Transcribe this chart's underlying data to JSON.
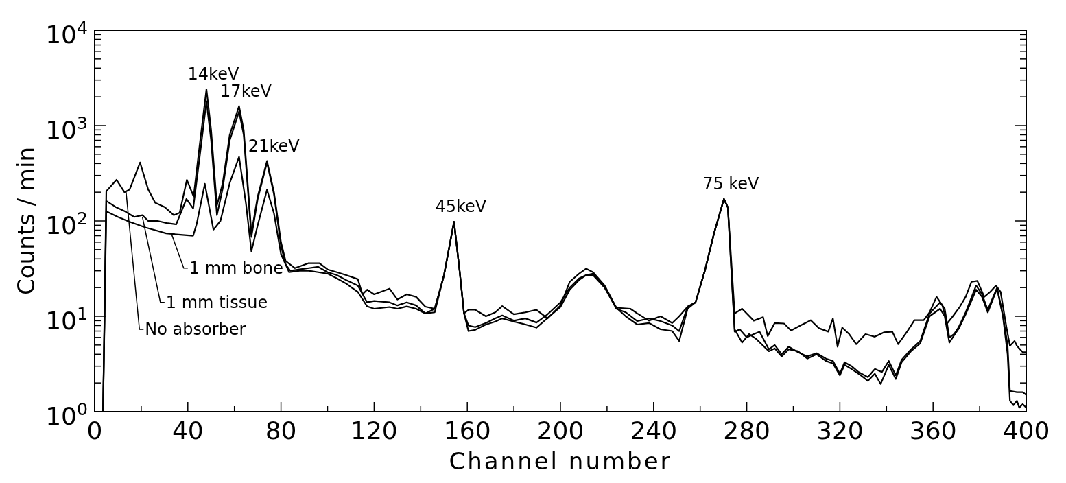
{
  "chart_data": {
    "type": "line",
    "xlabel": "Channel number",
    "ylabel": "Counts / min",
    "log": "y",
    "grid": false,
    "legend": false,
    "marker": "none",
    "line_style": "solid",
    "xlim": [
      0,
      400
    ],
    "ylim": [
      1,
      10000
    ],
    "xticks": [
      0,
      {
        "value": 20,
        "label": null
      },
      40,
      {
        "value": 60,
        "label": null
      },
      80,
      {
        "value": 100,
        "label": null
      },
      120,
      {
        "value": 140,
        "label": null
      },
      160,
      {
        "value": 180,
        "label": null
      },
      200,
      {
        "value": 220,
        "label": null
      },
      240,
      {
        "value": 260,
        "label": null
      },
      280,
      {
        "value": 300,
        "label": null
      },
      320,
      {
        "value": 340,
        "label": null
      },
      360,
      {
        "value": 380,
        "label": null
      },
      400
    ],
    "yticks": [
      {
        "value": 1,
        "label": "10$^{0}$"
      },
      {
        "value": 2,
        "label": null
      },
      {
        "value": 3,
        "label": null
      },
      {
        "value": 4,
        "label": null
      },
      {
        "value": 5,
        "label": null
      },
      {
        "value": 6,
        "label": null
      },
      {
        "value": 7,
        "label": null
      },
      {
        "value": 8,
        "label": null
      },
      {
        "value": 9,
        "label": null
      },
      {
        "value": 10,
        "label": "10$^{1}$"
      },
      {
        "value": 20,
        "label": null
      },
      {
        "value": 30,
        "label": null
      },
      {
        "value": 40,
        "label": null
      },
      {
        "value": 50,
        "label": null
      },
      {
        "value": 60,
        "label": null
      },
      {
        "value": 70,
        "label": null
      },
      {
        "value": 80,
        "label": null
      },
      {
        "value": 90,
        "label": null
      },
      {
        "value": 100,
        "label": "10$^{2}$"
      },
      {
        "value": 200,
        "label": null
      },
      {
        "value": 300,
        "label": null
      },
      {
        "value": 400,
        "label": null
      },
      {
        "value": 500,
        "label": null
      },
      {
        "value": 600,
        "label": null
      },
      {
        "value": 700,
        "label": null
      },
      {
        "value": 800,
        "label": null
      },
      {
        "value": 900,
        "label": null
      },
      {
        "value": 1000,
        "label": "10$^{3}$"
      },
      {
        "value": 2000,
        "label": null
      },
      {
        "value": 3000,
        "label": null
      },
      {
        "value": 4000,
        "label": null
      },
      {
        "value": 5000,
        "label": null
      },
      {
        "value": 6000,
        "label": null
      },
      {
        "value": 7000,
        "label": null
      },
      {
        "value": 8000,
        "label": null
      },
      {
        "value": 9000,
        "label": null
      },
      {
        "value": 10000,
        "label": "10$^{4}$"
      }
    ],
    "annotations": [
      {
        "text": "14keV",
        "x": 48,
        "y": 2400
      },
      {
        "text": "17keV",
        "x": 62,
        "y": 1600
      },
      {
        "text": "21keV",
        "x": 74,
        "y": 425
      },
      {
        "text": "45keV",
        "x": 154.3,
        "y": 98
      },
      {
        "text": "75 keV",
        "x": 270.2,
        "y": 170
      }
    ],
    "series": [
      {
        "name": "No absorber",
        "color": "#000000",
        "x": [
          3.6,
          5,
          9.4,
          12.8,
          15,
          19.5,
          23,
          26,
          30,
          34,
          36.5,
          39.6,
          42.5,
          45,
          48,
          50,
          52.5,
          55,
          58,
          62,
          64,
          67.3,
          70,
          74,
          77,
          80,
          82,
          86,
          91.7,
          96.5,
          100,
          104,
          108,
          113,
          115,
          117,
          120,
          126.6,
          130,
          134,
          138,
          142,
          146,
          150,
          154.3,
          156.7,
          158.6,
          160.5,
          163.4,
          168,
          172,
          175,
          180,
          185,
          189.7,
          194.5,
          200,
          204,
          208,
          211,
          214,
          219,
          224,
          230,
          233,
          238,
          243,
          248,
          251,
          254.6,
          258,
          262,
          266,
          270.2,
          271.9,
          274.8,
          278,
          283,
          287,
          289,
          292,
          296,
          299,
          303,
          307.5,
          311,
          315,
          317,
          319,
          321,
          324,
          327,
          331,
          335,
          339,
          342.5,
          345,
          349,
          352,
          356,
          358.5,
          361.5,
          364,
          366,
          368.5,
          371.5,
          374,
          376.5,
          379,
          382,
          384.5,
          387,
          389,
          391.5,
          393,
          395,
          396,
          398.5,
          400
        ],
        "values": [
          1,
          205,
          270,
          200,
          213,
          410,
          213,
          155,
          140,
          115,
          122,
          270,
          180,
          600,
          2400,
          900,
          145,
          250,
          800,
          1600,
          900,
          74,
          180,
          425,
          200,
          60,
          38,
          32,
          36,
          36,
          31,
          29,
          27,
          24.5,
          17,
          19,
          17,
          19.5,
          15,
          17,
          16,
          12.6,
          12,
          27,
          98,
          30,
          10.7,
          11.7,
          11.7,
          10,
          11,
          12.8,
          10.5,
          11,
          11.7,
          9.5,
          13,
          23,
          28,
          31.6,
          29,
          21,
          12.3,
          12,
          10.7,
          9,
          10,
          8.5,
          10,
          12.6,
          14,
          30,
          75,
          170,
          138,
          10.7,
          12,
          9,
          9.8,
          6.2,
          8.5,
          8.4,
          7.1,
          8,
          9.1,
          7.5,
          6.9,
          9.5,
          4.8,
          7.6,
          6.5,
          5.1,
          6.5,
          6.1,
          6.8,
          6.9,
          5.1,
          7,
          9.1,
          9.1,
          11,
          16,
          13,
          8.4,
          10,
          12.6,
          16,
          23,
          23.5,
          16,
          18,
          21,
          18,
          7.7,
          4.9,
          5.5,
          4.9,
          4.2,
          4.2
        ]
      },
      {
        "name": "1 mm tissue",
        "color": "#000000",
        "x": [
          3.6,
          5,
          9,
          13,
          17,
          20.5,
          23,
          27,
          31,
          35,
          39.4,
          42.3,
          45,
          48,
          50,
          52.5,
          55,
          58,
          62,
          64,
          67.3,
          70,
          74,
          77,
          80,
          82,
          84,
          88,
          92,
          96,
          100,
          104,
          108,
          113,
          117,
          120,
          126.6,
          130,
          134,
          138,
          142,
          146,
          150,
          154.3,
          156.7,
          158.6,
          160.5,
          163.4,
          168,
          172,
          175,
          180,
          185,
          189.7,
          194.5,
          200,
          204,
          208,
          211,
          214,
          219,
          224,
          228,
          233,
          238,
          243,
          248,
          251,
          254.6,
          258,
          262,
          266,
          270.2,
          271.9,
          274.8,
          277,
          280,
          283,
          285.5,
          289.5,
          292,
          295,
          298,
          302,
          306,
          310,
          314,
          317,
          320,
          322,
          325,
          328,
          332,
          335,
          338,
          341,
          344,
          346.5,
          350.5,
          354.5,
          358.5,
          363,
          365,
          367,
          369,
          371,
          374,
          378.5,
          381,
          383.5,
          387.5,
          390,
          392,
          393,
          396,
          398.5,
          400
        ],
        "values": [
          1,
          162,
          140,
          126,
          110,
          115,
          100,
          100,
          95,
          92,
          170,
          135,
          450,
          1800,
          700,
          115,
          220,
          700,
          1400,
          800,
          68,
          170,
          410,
          190,
          55,
          35,
          30,
          31,
          32,
          33,
          29,
          27,
          24,
          21,
          14,
          14.5,
          14,
          13,
          14,
          13,
          10.7,
          12,
          27,
          98,
          30,
          10.7,
          8,
          7.7,
          8.5,
          9.5,
          10.2,
          9,
          9.5,
          8.6,
          10.5,
          14,
          20,
          25,
          27,
          28,
          20,
          12,
          11,
          8.9,
          9.5,
          8.9,
          8,
          7,
          12.6,
          14,
          30,
          75,
          170,
          138,
          6.9,
          7.3,
          6,
          6.5,
          6.9,
          4.5,
          5,
          4,
          4.8,
          4.2,
          3.8,
          4.1,
          3.6,
          3.4,
          2.5,
          3.3,
          3,
          2.6,
          2.3,
          2.8,
          2.6,
          3.4,
          2.4,
          3.5,
          4.5,
          5.5,
          10.7,
          14,
          12,
          6,
          6.5,
          7.7,
          11,
          21,
          17,
          11.7,
          20,
          10.2,
          5,
          1.65,
          1.6,
          1.6,
          1.5
        ]
      },
      {
        "name": "1 mm bone",
        "color": "#000000",
        "x": [
          3.6,
          5,
          10,
          15,
          22,
          26,
          30.7,
          36,
          42.3,
          43.8,
          47.3,
          51,
          54,
          58,
          62,
          65,
          67.3,
          70,
          74,
          77,
          80,
          83.5,
          88,
          92,
          96,
          100,
          104,
          108,
          113,
          117,
          120,
          126.6,
          130,
          134,
          138,
          142,
          146,
          150,
          154.3,
          156.7,
          158.6,
          160.5,
          163.4,
          168,
          172,
          175,
          180,
          185,
          189.7,
          194.5,
          200,
          204,
          208,
          211,
          214,
          219,
          224,
          228,
          233,
          238,
          243,
          248,
          251,
          254.6,
          258,
          262,
          266,
          270.2,
          271.9,
          274.8,
          278,
          281,
          284,
          289.5,
          292,
          295,
          298,
          302,
          306,
          310,
          314,
          317,
          320,
          322,
          325,
          329,
          332,
          335,
          337.5,
          341,
          344,
          346.5,
          350.5,
          354.5,
          358.5,
          363,
          365,
          367,
          369,
          371,
          374,
          378.5,
          381,
          383.5,
          387.5,
          390,
          392,
          393,
          394.5,
          396,
          397,
          398.5,
          400
        ],
        "values": [
          1,
          126,
          110,
          98,
          85,
          80,
          74,
          72,
          70,
          93,
          245,
          81,
          100,
          250,
          470,
          150,
          48,
          90,
          212,
          120,
          45,
          29,
          30,
          30,
          29,
          28,
          25,
          22,
          18,
          12.7,
          12,
          12.5,
          12,
          12.7,
          12,
          10.7,
          11,
          27,
          98,
          30,
          10.7,
          7,
          7.2,
          8.2,
          8.8,
          9.5,
          8.8,
          8.2,
          7.6,
          9.6,
          12.5,
          19,
          24,
          27,
          27,
          20,
          12.3,
          10,
          8.2,
          8.5,
          7.3,
          7,
          5.5,
          12,
          14,
          30,
          75,
          170,
          138,
          7.3,
          5.3,
          6.5,
          5.8,
          4.3,
          4.6,
          3.8,
          4.5,
          4.3,
          3.6,
          4,
          3.4,
          3.2,
          2.4,
          3.1,
          2.8,
          2.4,
          2.1,
          2.5,
          1.95,
          3.1,
          2.2,
          3.3,
          4.3,
          5.2,
          10,
          12,
          10,
          5.3,
          6.3,
          7.4,
          10.5,
          19,
          16,
          11,
          19.5,
          10,
          4,
          1.3,
          1.17,
          1.3,
          1.1,
          1.2,
          1.1
        ]
      }
    ]
  }
}
